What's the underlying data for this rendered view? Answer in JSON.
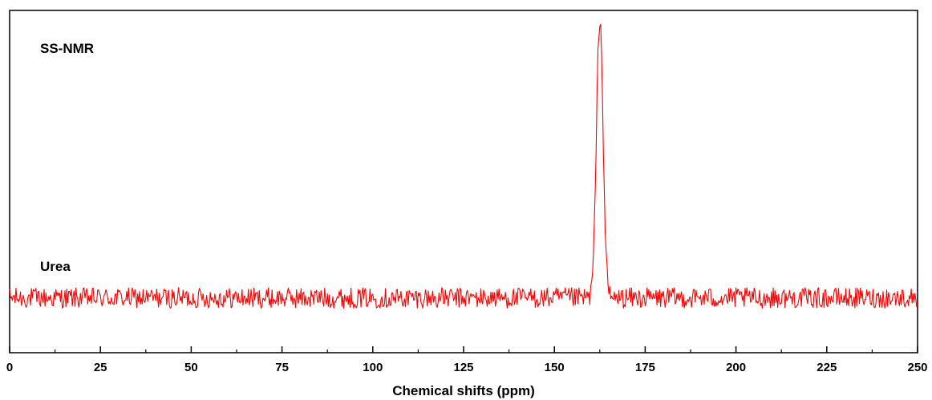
{
  "chart_data": {
    "type": "line",
    "title": "",
    "xlabel": "Chemical shifts (ppm)",
    "ylabel": "",
    "xlim": [
      0,
      250
    ],
    "ylim": [
      0,
      1
    ],
    "xticks": [
      0,
      25,
      50,
      75,
      100,
      125,
      150,
      175,
      200,
      225,
      250
    ],
    "xtick_labels": [
      "0",
      "25",
      "50",
      "75",
      "100",
      "125",
      "150",
      "175",
      "200",
      "225",
      "250"
    ],
    "yaxis_ticks_visible": false,
    "grid": false,
    "annotations": [
      {
        "text": "SS-NMR"
      },
      {
        "text": "Urea"
      }
    ],
    "series": [
      {
        "color": "#ff0000",
        "baseline": 0.16,
        "noise_amplitude": 0.03,
        "peaks": [
          {
            "x": 162.5,
            "height": 0.98,
            "width_ppm": 0.9
          }
        ]
      }
    ]
  }
}
